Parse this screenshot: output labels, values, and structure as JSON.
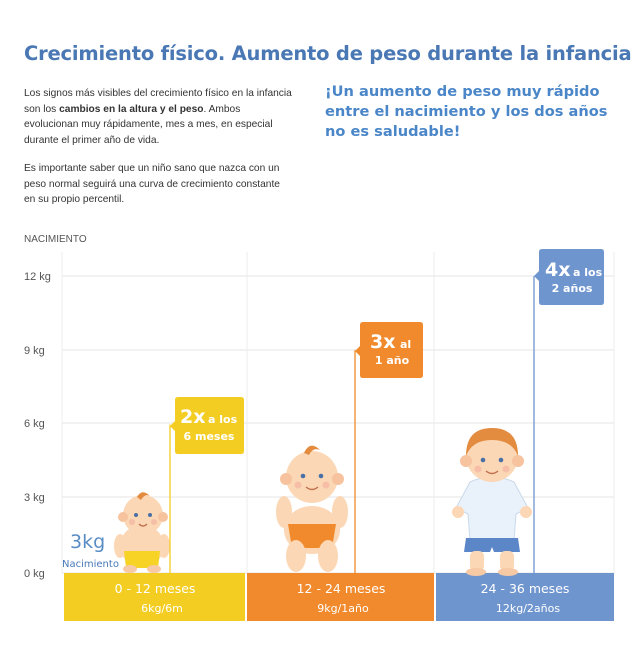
{
  "header": {
    "title": "Crecimiento físico. Aumento de peso durante la infancia",
    "paragraph1": [
      "Los signos más visibles del crecimiento físico en la infancia son los ",
      "cambios en la altura y el peso",
      ". Ambos evolucionan muy rápidamente, mes a mes, en especial durante el primer año de vida."
    ],
    "paragraph2": "Es importante saber que un niño sano que nazca con un peso normal seguirá una curva de crecimiento constante en su propio percentil.",
    "highlight": "¡Un aumento de peso muy rápido entre el nacimiento y los dos años no es saludable!"
  },
  "chart_data": {
    "type": "bar",
    "y_axis_title": "NACIMIENTO",
    "ylim": [
      0,
      12
    ],
    "y_ticks": [
      {
        "value": 0,
        "label": "0 kg"
      },
      {
        "value": 3,
        "label": "3 kg"
      },
      {
        "value": 6,
        "label": "6 kg"
      },
      {
        "value": 9,
        "label": "9 kg"
      },
      {
        "value": 12,
        "label": "12 kg"
      }
    ],
    "grid": true,
    "birth": {
      "value": 3,
      "label": "3kg",
      "sublabel": "Nacimiento"
    },
    "categories": [
      "0 - 12 meses",
      "12 - 24 meses",
      "24 - 36 meses"
    ],
    "sublabels": [
      "6kg/6m",
      "9kg/1año",
      "12kg/2años"
    ],
    "values": [
      6,
      9,
      12
    ],
    "colors": [
      "#f4cd22",
      "#f08a2c",
      "#6f95cf"
    ],
    "tags": [
      {
        "big": "2x",
        "line1": "a los",
        "line2": "6 meses"
      },
      {
        "big": "3x",
        "line1": "al",
        "line2": "1 año"
      },
      {
        "big": "4x",
        "line1": "a los",
        "line2": "2 años"
      }
    ]
  }
}
